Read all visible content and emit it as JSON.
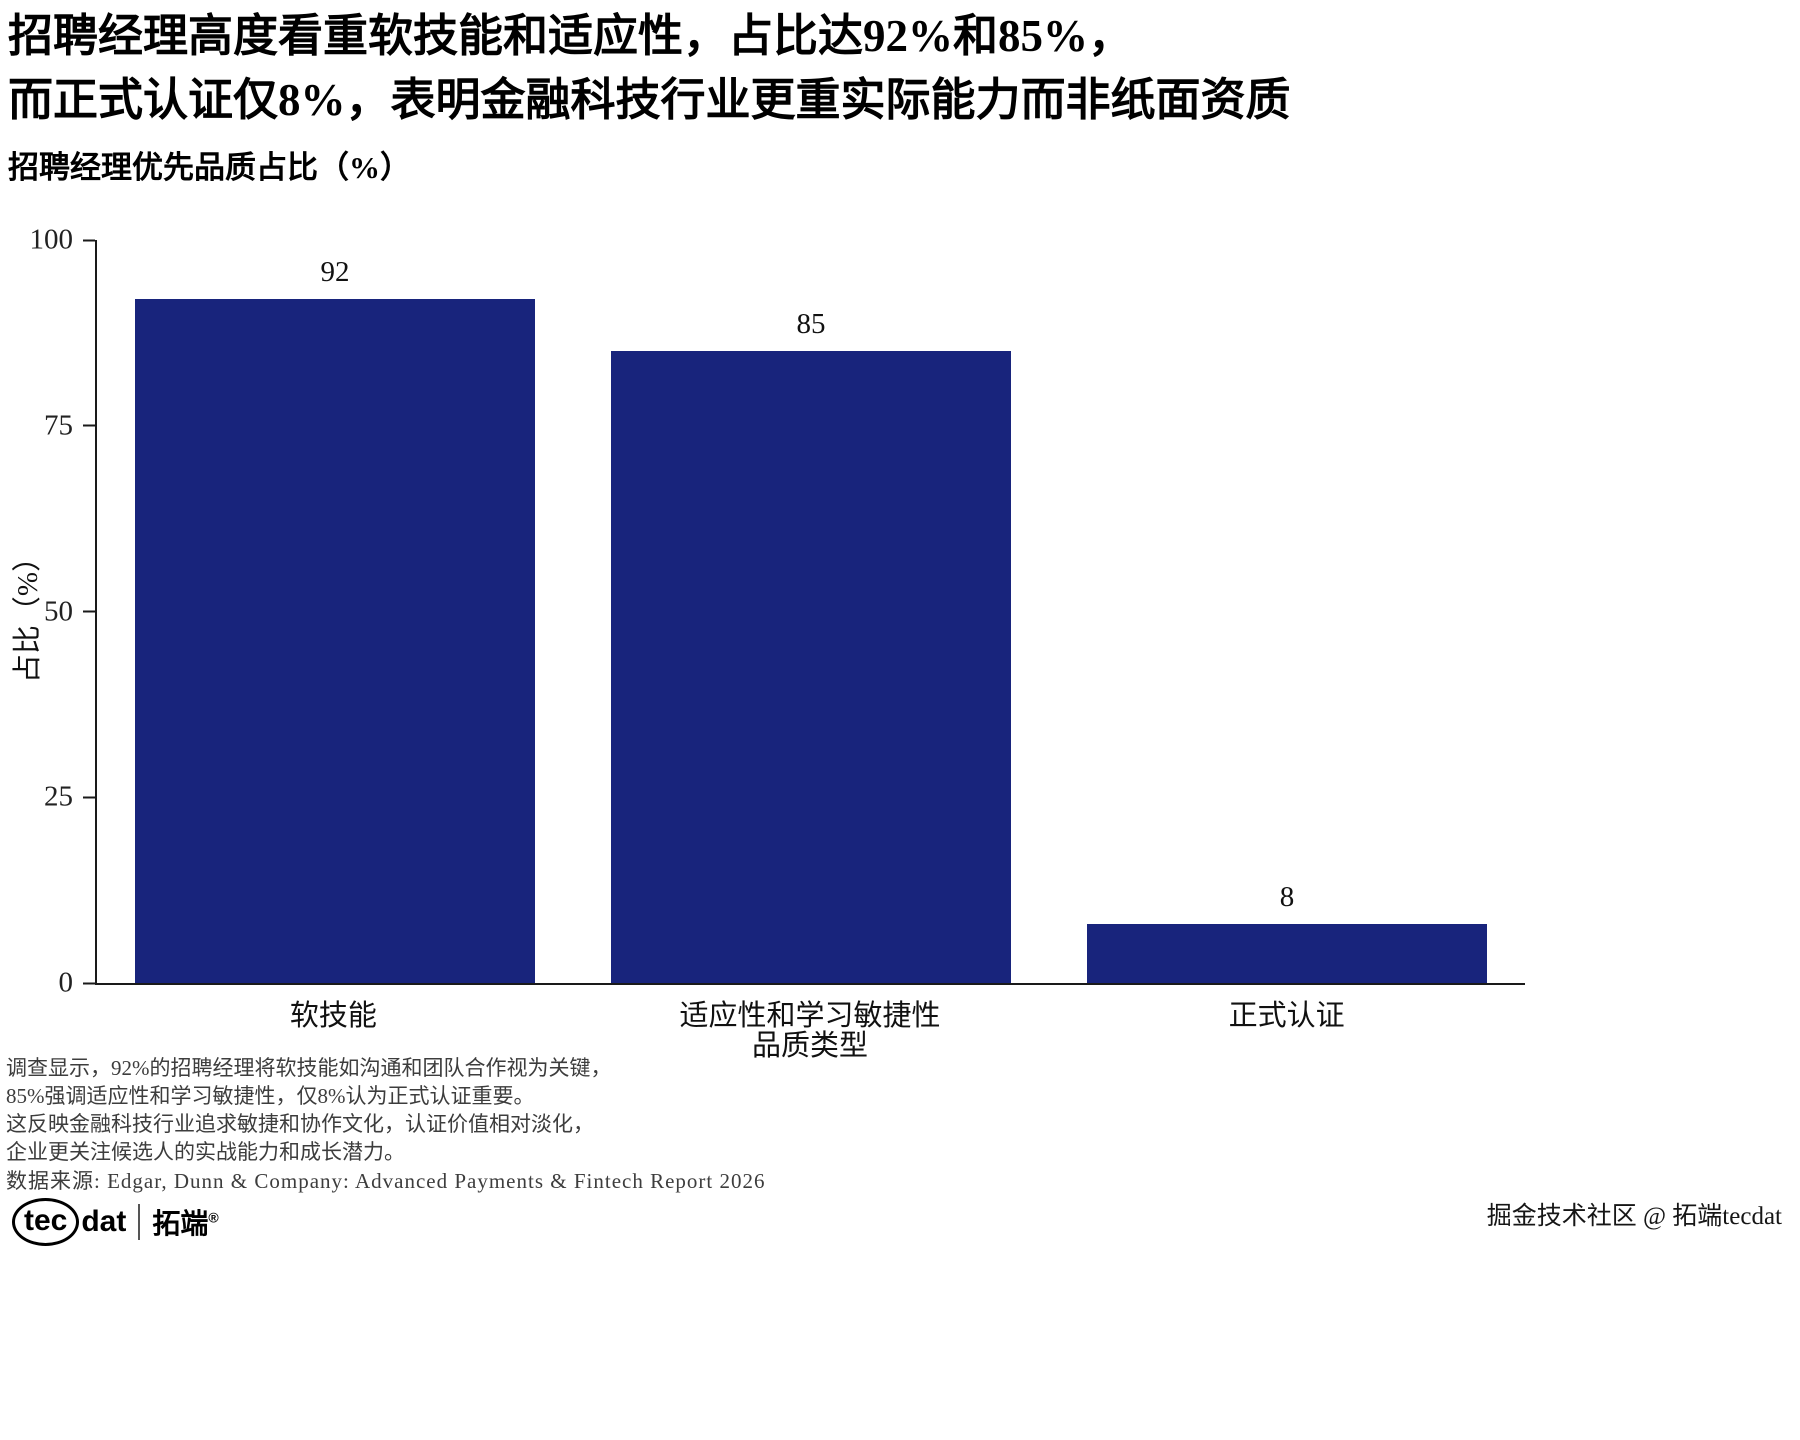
{
  "header": {
    "title_line1": "招聘经理高度看重软技能和适应性，占比达92%和85%，",
    "title_line2": "而正式认证仅8%，表明金融科技行业更重实际能力而非纸面资质",
    "subtitle": "招聘经理优先品质占比（%）"
  },
  "chart_data": {
    "type": "bar",
    "title": "招聘经理优先品质占比（%）",
    "categories": [
      "软技能",
      "适应性和学习敏捷性",
      "正式认证"
    ],
    "values": [
      92,
      85,
      8
    ],
    "xlabel": "品质类型",
    "ylabel": "占比（%）",
    "ylim": [
      0,
      100
    ],
    "yticks": [
      0,
      25,
      50,
      75,
      100
    ],
    "bar_color": "#18247C",
    "axis_color": "#1a1a1a",
    "grid": false,
    "value_labels": true,
    "legend": "none"
  },
  "caption": {
    "lines": [
      "调查显示，92%的招聘经理将软技能如沟通和团队合作视为关键，",
      "85%强调适应性和学习敏捷性，仅8%认为正式认证重要。",
      "这反映金融科技行业追求敏捷和协作文化，认证价值相对淡化，",
      "企业更关注候选人的实战能力和成长潜力。"
    ],
    "source": "数据来源: Edgar, Dunn & Company: Advanced Payments & Fintech Report 2026"
  },
  "footer": {
    "logo_part1": "tec",
    "logo_part2": "dat",
    "logo_brand": "拓端",
    "logo_reg": "®",
    "watermark": "掘金技术社区 @ 拓端tecdat"
  }
}
